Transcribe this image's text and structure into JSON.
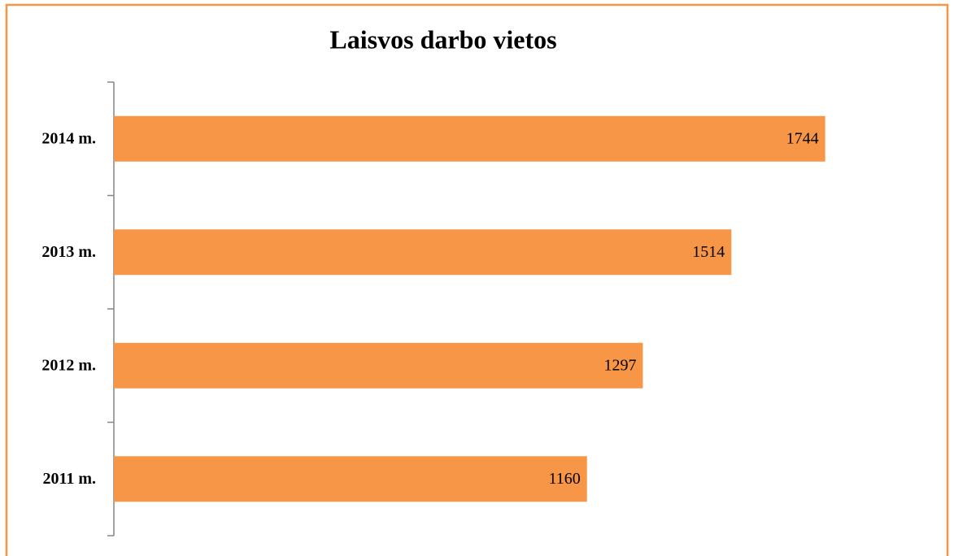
{
  "chart_data": {
    "type": "bar",
    "orientation": "horizontal",
    "title": "Laisvos darbo vietos",
    "categories": [
      "2011 m.",
      "2012 m.",
      "2013 m.",
      "2014 m."
    ],
    "values": [
      1160,
      1297,
      1514,
      1744
    ],
    "color": "#f79646",
    "xlim": [
      0,
      2000
    ]
  }
}
